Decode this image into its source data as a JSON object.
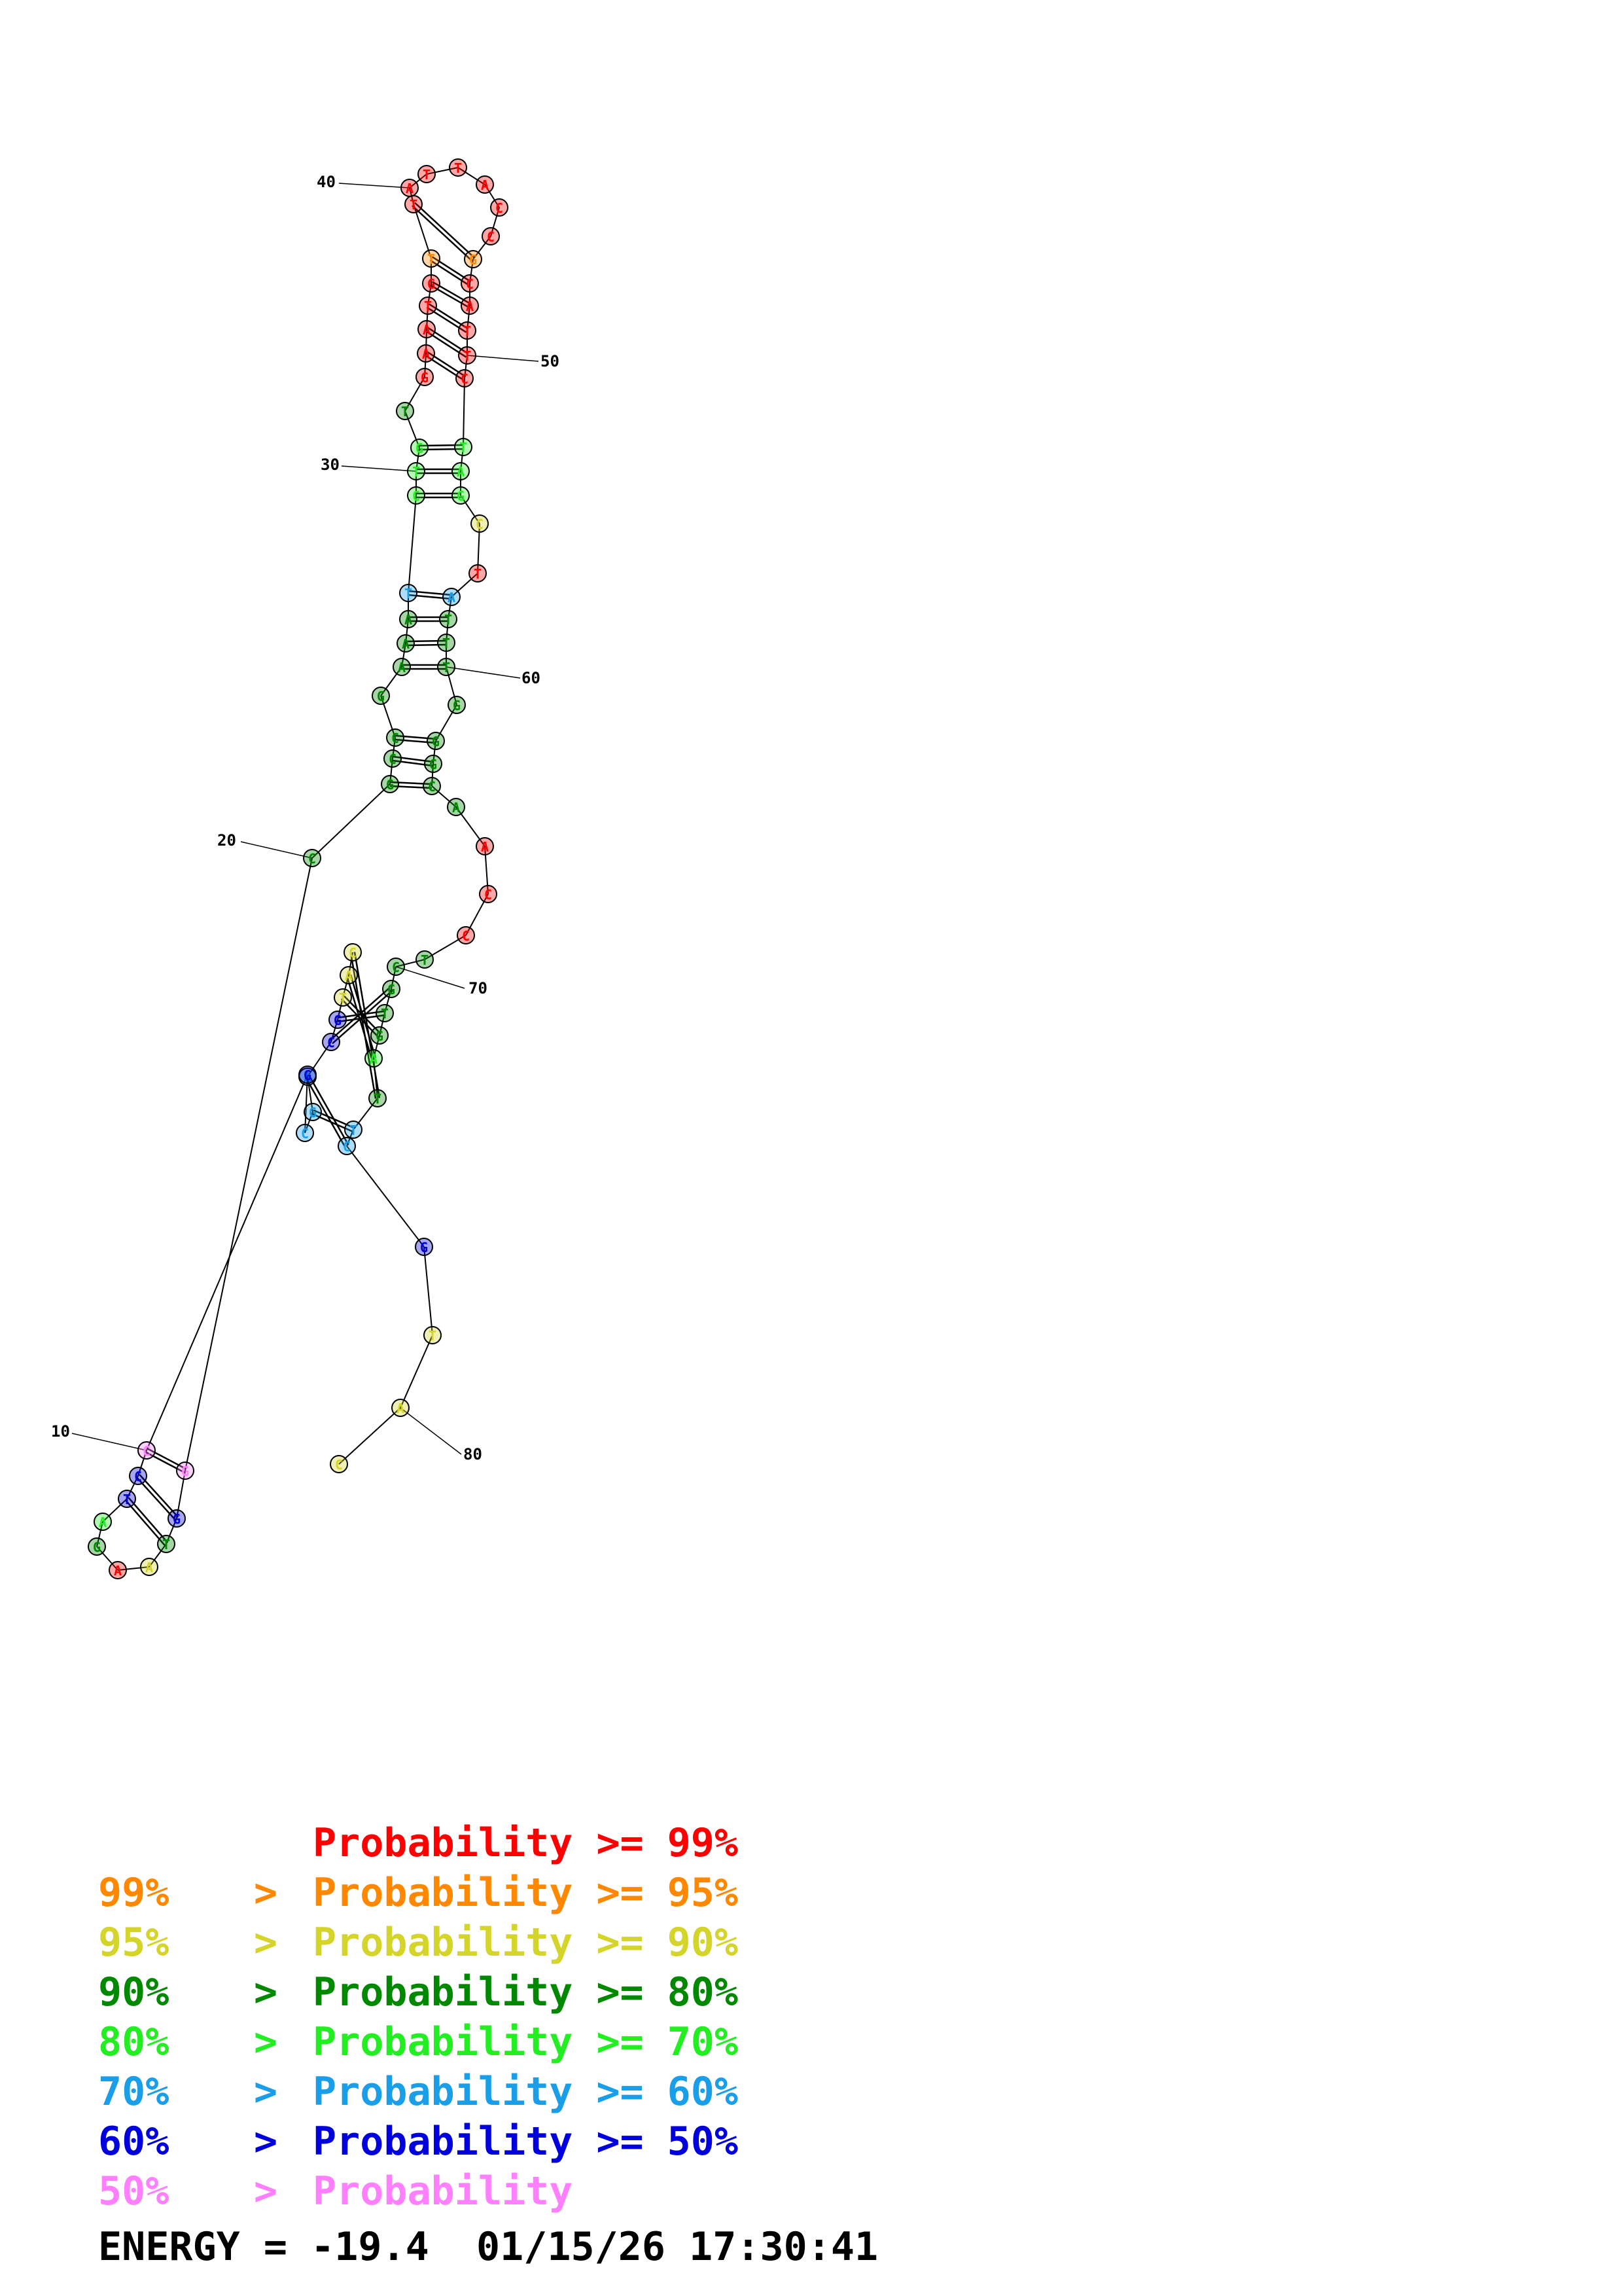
{
  "colors": {
    "p99": "#ff0000",
    "p95": "#ff8800",
    "p90": "#d4d42a",
    "p80": "#008800",
    "p70": "#22ee22",
    "p60": "#1a9ee8",
    "p50": "#0000dd",
    "plow": "#ff80ff"
  },
  "diagram": {
    "index_labels": [
      "10",
      "20",
      "30",
      "40",
      "50",
      "60",
      "70",
      "80"
    ],
    "nucleotides": [
      {
        "n": 1,
        "base": "C",
        "prob": "p90"
      },
      {
        "n": 2,
        "base": "A",
        "prob": "p90"
      },
      {
        "n": 3,
        "base": "T",
        "prob": "p90"
      },
      {
        "n": 4,
        "base": "G",
        "prob": "p50"
      },
      {
        "n": 5,
        "base": "C",
        "prob": "p50"
      },
      {
        "n": 6,
        "base": "A",
        "prob": "p60"
      },
      {
        "n": 7,
        "base": "G",
        "prob": "p60"
      },
      {
        "n": 8,
        "base": "C",
        "prob": "p60"
      },
      {
        "n": 9,
        "base": "G",
        "prob": "p50"
      },
      {
        "n": 10,
        "base": "C",
        "prob": "plow"
      },
      {
        "n": 11,
        "base": "C",
        "prob": "p50"
      },
      {
        "n": 12,
        "base": "T",
        "prob": "p50"
      },
      {
        "n": 13,
        "base": "A",
        "prob": "p70"
      },
      {
        "n": 14,
        "base": "G",
        "prob": "p80"
      },
      {
        "n": 15,
        "base": "A",
        "prob": "p99"
      },
      {
        "n": 16,
        "base": "A",
        "prob": "p90"
      },
      {
        "n": 17,
        "base": "T",
        "prob": "p80"
      },
      {
        "n": 18,
        "base": "G",
        "prob": "p50"
      },
      {
        "n": 19,
        "base": "G",
        "prob": "plow"
      },
      {
        "n": 20,
        "base": "C",
        "prob": "p80"
      },
      {
        "n": 21,
        "base": "G",
        "prob": "p80"
      },
      {
        "n": 22,
        "base": "C",
        "prob": "p80"
      },
      {
        "n": 23,
        "base": "C",
        "prob": "p80"
      },
      {
        "n": 24,
        "base": "G",
        "prob": "p80"
      },
      {
        "n": 25,
        "base": "A",
        "prob": "p80"
      },
      {
        "n": 26,
        "base": "A",
        "prob": "p80"
      },
      {
        "n": 27,
        "base": "A",
        "prob": "p80"
      },
      {
        "n": 28,
        "base": "T",
        "prob": "p60"
      },
      {
        "n": 29,
        "base": "C",
        "prob": "p70"
      },
      {
        "n": 30,
        "base": "T",
        "prob": "p70"
      },
      {
        "n": 31,
        "base": "G",
        "prob": "p70"
      },
      {
        "n": 32,
        "base": "T",
        "prob": "p80"
      },
      {
        "n": 33,
        "base": "G",
        "prob": "p99"
      },
      {
        "n": 34,
        "base": "A",
        "prob": "p99"
      },
      {
        "n": 35,
        "base": "A",
        "prob": "p99"
      },
      {
        "n": 36,
        "base": "T",
        "prob": "p99"
      },
      {
        "n": 37,
        "base": "G",
        "prob": "p99"
      },
      {
        "n": 38,
        "base": "T",
        "prob": "p95"
      },
      {
        "n": 39,
        "base": "T",
        "prob": "p99"
      },
      {
        "n": 40,
        "base": "A",
        "prob": "p99"
      },
      {
        "n": 41,
        "base": "T",
        "prob": "p99"
      },
      {
        "n": 42,
        "base": "T",
        "prob": "p99"
      },
      {
        "n": 43,
        "base": "A",
        "prob": "p99"
      },
      {
        "n": 44,
        "base": "C",
        "prob": "p99"
      },
      {
        "n": 45,
        "base": "C",
        "prob": "p99"
      },
      {
        "n": 46,
        "base": "G",
        "prob": "p95"
      },
      {
        "n": 47,
        "base": "C",
        "prob": "p99"
      },
      {
        "n": 48,
        "base": "A",
        "prob": "p99"
      },
      {
        "n": 49,
        "base": "T",
        "prob": "p99"
      },
      {
        "n": 50,
        "base": "T",
        "prob": "p99"
      },
      {
        "n": 51,
        "base": "C",
        "prob": "p99"
      },
      {
        "n": 52,
        "base": "T",
        "prob": "p70"
      },
      {
        "n": 53,
        "base": "A",
        "prob": "p70"
      },
      {
        "n": 54,
        "base": "G",
        "prob": "p70"
      },
      {
        "n": 55,
        "base": "C",
        "prob": "p90"
      },
      {
        "n": 56,
        "base": "T",
        "prob": "p99"
      },
      {
        "n": 57,
        "base": "A",
        "prob": "p60"
      },
      {
        "n": 58,
        "base": "T",
        "prob": "p80"
      },
      {
        "n": 59,
        "base": "T",
        "prob": "p80"
      },
      {
        "n": 60,
        "base": "T",
        "prob": "p80"
      },
      {
        "n": 61,
        "base": "G",
        "prob": "p80"
      },
      {
        "n": 62,
        "base": "G",
        "prob": "p80"
      },
      {
        "n": 63,
        "base": "G",
        "prob": "p80"
      },
      {
        "n": 64,
        "base": "C",
        "prob": "p80"
      },
      {
        "n": 65,
        "base": "A",
        "prob": "p80"
      },
      {
        "n": 66,
        "base": "A",
        "prob": "p99"
      },
      {
        "n": 67,
        "base": "C",
        "prob": "p99"
      },
      {
        "n": 68,
        "base": "C",
        "prob": "p99"
      },
      {
        "n": 69,
        "base": "T",
        "prob": "p80"
      },
      {
        "n": 70,
        "base": "C",
        "prob": "p80"
      },
      {
        "n": 71,
        "base": "G",
        "prob": "p80"
      },
      {
        "n": 72,
        "base": "T",
        "prob": "p80"
      },
      {
        "n": 73,
        "base": "G",
        "prob": "p80"
      },
      {
        "n": 74,
        "base": "A",
        "prob": "p70"
      },
      {
        "n": 75,
        "base": "T",
        "prob": "p80"
      },
      {
        "n": 76,
        "base": "T",
        "prob": "p60"
      },
      {
        "n": 77,
        "base": "C",
        "prob": "p60"
      },
      {
        "n": 78,
        "base": "G",
        "prob": "p50"
      },
      {
        "n": 79,
        "base": "T",
        "prob": "p90"
      },
      {
        "n": 80,
        "base": "A",
        "prob": "p90"
      },
      {
        "n": 81,
        "base": "C",
        "prob": "p90"
      }
    ]
  },
  "legend": [
    {
      "prefix": "",
      "gt": "",
      "label": "Probability",
      "op": ">=",
      "threshold": "99%",
      "color_key": "p99"
    },
    {
      "prefix": "99%",
      "gt": ">",
      "label": "Probability",
      "op": ">=",
      "threshold": "95%",
      "color_key": "p95"
    },
    {
      "prefix": "95%",
      "gt": ">",
      "label": "Probability",
      "op": ">=",
      "threshold": "90%",
      "color_key": "p90"
    },
    {
      "prefix": "90%",
      "gt": ">",
      "label": "Probability",
      "op": ">=",
      "threshold": "80%",
      "color_key": "p80"
    },
    {
      "prefix": "80%",
      "gt": ">",
      "label": "Probability",
      "op": ">=",
      "threshold": "70%",
      "color_key": "p70"
    },
    {
      "prefix": "70%",
      "gt": ">",
      "label": "Probability",
      "op": ">=",
      "threshold": "60%",
      "color_key": "p60"
    },
    {
      "prefix": "60%",
      "gt": ">",
      "label": "Probability",
      "op": ">=",
      "threshold": "50%",
      "color_key": "p50"
    },
    {
      "prefix": "50%",
      "gt": ">",
      "label": "Probability",
      "op": "",
      "threshold": "",
      "color_key": "plow"
    }
  ],
  "energy": {
    "text": "ENERGY = -19.4  01/15/26 17:30:41"
  }
}
